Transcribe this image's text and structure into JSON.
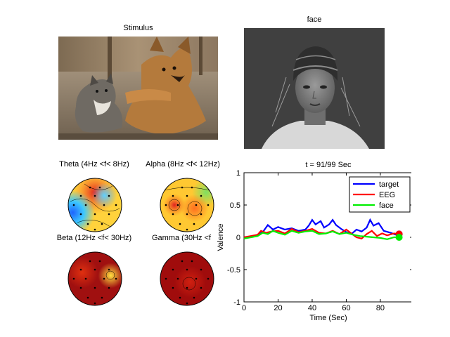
{
  "stimulus_panel": {
    "title": "Stimulus"
  },
  "face_panel": {
    "title": "face"
  },
  "topomaps": [
    {
      "title": "Theta (4Hz <f< 8Hz)"
    },
    {
      "title": "Alpha (8Hz <f< 12Hz)"
    },
    {
      "title": "Beta (12Hz <f< 30Hz)"
    },
    {
      "title": "Gamma  (30Hz <f"
    }
  ],
  "colors": {
    "target": "#0000ff",
    "eeg": "#ff0000",
    "face": "#00ee00",
    "figure_bg": "#ffffff",
    "window_bg": "#cccccc"
  },
  "chart_data": {
    "type": "line",
    "title": "t = 91/99 Sec",
    "xlabel": "Time (Sec)",
    "ylabel": "Valence",
    "xlim": [
      0,
      99
    ],
    "ylim": [
      -1,
      1
    ],
    "xticks": [
      "0",
      "20",
      "40",
      "60",
      "80"
    ],
    "yticks": [
      "-1",
      "-0.5",
      "0",
      "0.5",
      "1"
    ],
    "xtick_values": [
      0,
      20,
      40,
      60,
      80
    ],
    "ytick_values": [
      -1,
      -0.5,
      0,
      0.5,
      1
    ],
    "grid": false,
    "legend": "top-right",
    "series": [
      {
        "name": "target",
        "key": "target",
        "x": [
          0,
          4,
          8,
          11,
          14,
          17,
          20,
          24,
          28,
          32,
          36,
          38,
          40,
          42,
          45,
          47,
          50,
          52,
          54,
          57,
          60,
          63,
          66,
          69,
          72,
          74,
          76,
          79,
          82,
          86,
          89,
          91
        ],
        "y": [
          0,
          0.01,
          0.03,
          0.08,
          0.19,
          0.12,
          0.16,
          0.12,
          0.14,
          0.1,
          0.12,
          0.18,
          0.27,
          0.2,
          0.25,
          0.15,
          0.2,
          0.27,
          0.19,
          0.13,
          0.08,
          0.05,
          0.12,
          0.09,
          0.15,
          0.27,
          0.18,
          0.22,
          0.1,
          0.07,
          0.04,
          0.05
        ]
      },
      {
        "name": "EEG",
        "key": "eeg",
        "x": [
          0,
          4,
          8,
          10,
          13,
          16,
          20,
          24,
          28,
          32,
          36,
          40,
          44,
          48,
          52,
          56,
          60,
          63,
          66,
          69,
          72,
          75,
          78,
          81,
          84,
          88,
          91
        ],
        "y": [
          0,
          0.02,
          0.04,
          0.1,
          0.07,
          0.09,
          0.1,
          0.06,
          0.13,
          0.08,
          0.1,
          0.13,
          0.07,
          0.06,
          0.1,
          0.05,
          0.12,
          0.06,
          0.0,
          -0.02,
          0.05,
          0.1,
          0.02,
          0.06,
          0.03,
          0.06,
          0.05
        ]
      },
      {
        "name": "face",
        "key": "face",
        "x": [
          0,
          4,
          8,
          11,
          14,
          17,
          20,
          24,
          28,
          32,
          36,
          40,
          44,
          48,
          52,
          56,
          60,
          64,
          68,
          72,
          76,
          80,
          84,
          88,
          91
        ],
        "y": [
          -0.02,
          0.0,
          0.02,
          0.07,
          0.05,
          0.1,
          0.07,
          0.04,
          0.1,
          0.07,
          0.09,
          0.1,
          0.05,
          0.06,
          0.09,
          0.05,
          0.07,
          0.04,
          0.02,
          0.01,
          0.0,
          -0.01,
          -0.03,
          0.0,
          0.0
        ]
      }
    ],
    "current_time": 91
  }
}
